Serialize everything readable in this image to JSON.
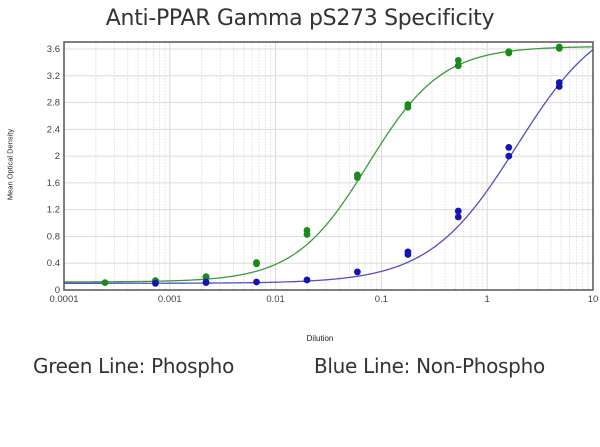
{
  "title": "Anti-PPAR Gamma pS273 Specificity",
  "legend_notes": {
    "green": "Green Line: Phospho",
    "blue": "Blue Line: Non-Phospho"
  },
  "chart_data": {
    "type": "scatter",
    "title": "Anti-PPAR Gamma pS273 Specificity",
    "xlabel": "Dilution",
    "ylabel": "Mean Optical Density",
    "xscale": "log",
    "xlim": [
      0.0001,
      10
    ],
    "ylim": [
      0,
      3.6
    ],
    "x_ticks": [
      "0.0001",
      "0.001",
      "0.01",
      "0.1",
      "1",
      "10"
    ],
    "y_ticks": [
      "0",
      "0.4",
      "0.8",
      "1.2",
      "1.6",
      "2",
      "2.4",
      "2.8",
      "3.2",
      "3.6"
    ],
    "grid": true,
    "legend_position": "below chart (text annotations)",
    "series": [
      {
        "name": "Phospho",
        "color": "#1a8a1a",
        "line_color": "#3a9a3a",
        "fit": "4PL sigmoid",
        "fit_params": {
          "bottom": 0.12,
          "top": 3.64,
          "ec50": 0.075,
          "hill": 1.25
        },
        "points": [
          {
            "x": 0.000244,
            "y": [
              0.11
            ]
          },
          {
            "x": 0.000732,
            "y": [
              0.13,
              0.14
            ]
          },
          {
            "x": 0.0022,
            "y": [
              0.19,
              0.2
            ]
          },
          {
            "x": 0.0066,
            "y": [
              0.39,
              0.41
            ]
          },
          {
            "x": 0.0198,
            "y": [
              0.83,
              0.89
            ]
          },
          {
            "x": 0.0593,
            "y": [
              1.68,
              1.72
            ]
          },
          {
            "x": 0.178,
            "y": [
              2.73,
              2.77
            ]
          },
          {
            "x": 0.533,
            "y": [
              3.35,
              3.43
            ]
          },
          {
            "x": 1.6,
            "y": [
              3.54,
              3.56
            ]
          },
          {
            "x": 4.8,
            "y": [
              3.61,
              3.63
            ]
          }
        ]
      },
      {
        "name": "Non-Phospho",
        "color": "#1414b4",
        "line_color": "#5050c8",
        "fit": "4PL sigmoid",
        "fit_params": {
          "bottom": 0.1,
          "top": 4.2,
          "ec50": 1.9,
          "hill": 1.05
        },
        "points": [
          {
            "x": 0.000732,
            "y": [
              0.1
            ]
          },
          {
            "x": 0.0022,
            "y": [
              0.11,
              0.12
            ]
          },
          {
            "x": 0.0066,
            "y": [
              0.12
            ]
          },
          {
            "x": 0.0198,
            "y": [
              0.15
            ]
          },
          {
            "x": 0.0593,
            "y": [
              0.27
            ]
          },
          {
            "x": 0.178,
            "y": [
              0.53,
              0.57
            ]
          },
          {
            "x": 0.533,
            "y": [
              1.09,
              1.18
            ]
          },
          {
            "x": 1.6,
            "y": [
              2.0,
              2.13
            ]
          },
          {
            "x": 4.8,
            "y": [
              3.04,
              3.1
            ]
          }
        ]
      }
    ]
  }
}
